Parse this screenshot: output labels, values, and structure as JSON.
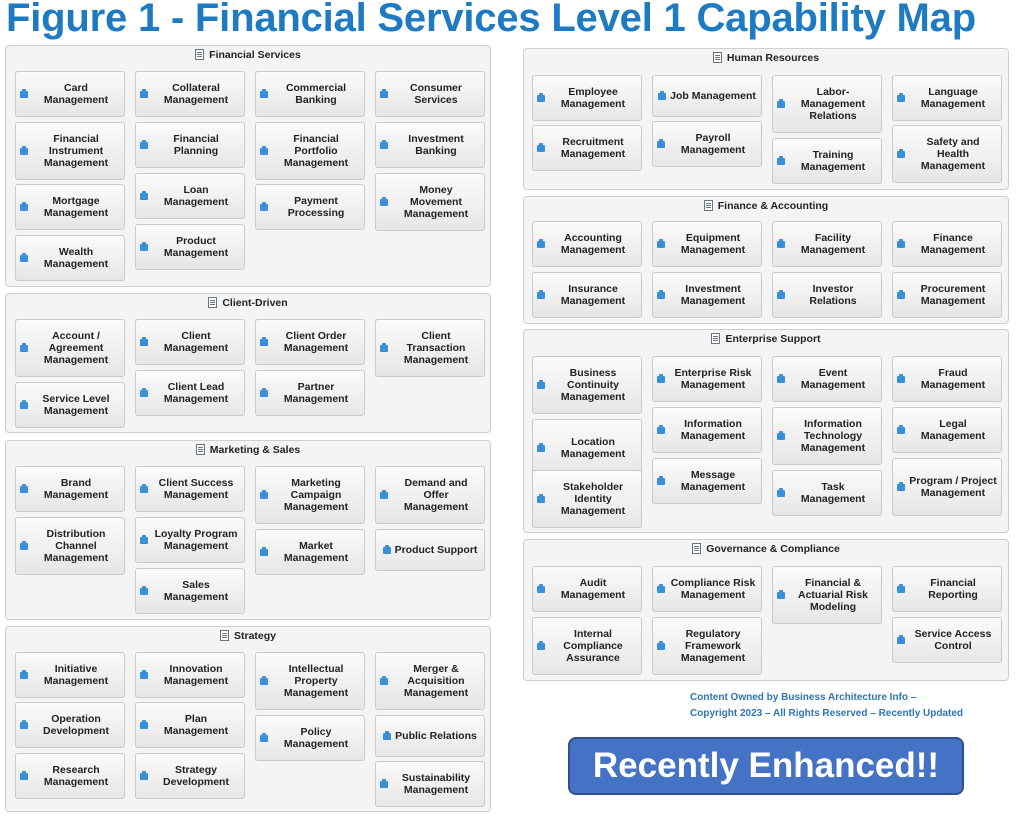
{
  "title": "Figure 1 - Financial Services Level 1 Capability Map",
  "colors": {
    "title": "#1F7BC1",
    "accent": "#4472C4",
    "footer": "#2E75B6"
  },
  "icons": {
    "group": "document-icon",
    "capability": "capability-icon"
  },
  "groups": [
    {
      "name": "Financial Services",
      "capabilities": [
        "Card Management",
        "Collateral Management",
        "Commercial Banking",
        "Consumer Services",
        "Financial Instrument Management",
        "Financial Planning",
        "Financial Portfolio Management",
        "Investment Banking",
        "Mortgage Management",
        "Loan Management",
        "Payment Processing",
        "Money Movement Management",
        "Wealth Management",
        "Product Management"
      ]
    },
    {
      "name": "Client-Driven",
      "capabilities": [
        "Account / Agreement Management",
        "Client Management",
        "Client Order Management",
        "Client Transaction Management",
        "Service Level Management",
        "Client Lead Management",
        "Partner Management"
      ]
    },
    {
      "name": "Marketing & Sales",
      "capabilities": [
        "Brand Management",
        "Client Success Management",
        "Marketing Campaign Management",
        "Demand and Offer Management",
        "Distribution Channel Management",
        "Loyalty Program Management",
        "Market Management",
        "Product Support",
        "Sales Management"
      ]
    },
    {
      "name": "Strategy",
      "capabilities": [
        "Initiative Management",
        "Innovation Management",
        "Intellectual Property Management",
        "Merger & Acquisition Management",
        "Operation Development",
        "Plan Management",
        "Policy Management",
        "Public Relations",
        "Research Management",
        "Strategy Development",
        "Sustainability Management"
      ]
    },
    {
      "name": "Human Resources",
      "capabilities": [
        "Employee Management",
        "Job Management",
        "Labor-Management Relations",
        "Language Management",
        "Recruitment Management",
        "Payroll Management",
        "Training Management",
        "Safety and Health Management"
      ]
    },
    {
      "name": "Finance & Accounting",
      "capabilities": [
        "Accounting Management",
        "Equipment Management",
        "Facility Management",
        "Finance Management",
        "Insurance Management",
        "Investment Management",
        "Investor Relations",
        "Procurement Management"
      ]
    },
    {
      "name": "Enterprise Support",
      "capabilities": [
        "Business Continuity Management",
        "Enterprise Risk Management",
        "Event Management",
        "Fraud Management",
        "Location Management",
        "Information Management",
        "Information Technology Management",
        "Legal Management",
        "Stakeholder Identity Management",
        "Message Management",
        "Task Management",
        "Program / Project Management"
      ]
    },
    {
      "name": "Governance & Compliance",
      "capabilities": [
        "Audit Management",
        "Compliance Risk Management",
        "Financial & Actuarial Risk Modeling",
        "Financial Reporting",
        "Internal Compliance Assurance",
        "Regulatory Framework Management",
        "Service Access Control"
      ]
    }
  ],
  "footer": {
    "line1": "Content Owned by Business Architecture Info –",
    "line2": "Copyright 2023 – All Rights Reserved – Recently Updated"
  },
  "badge": "Recently Enhanced!!"
}
